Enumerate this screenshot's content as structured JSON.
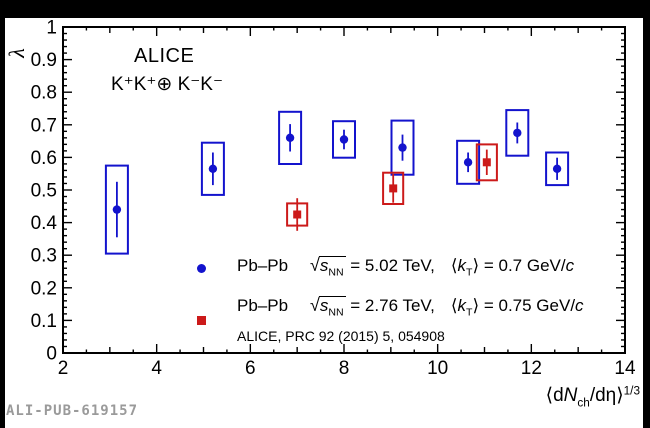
{
  "page": {
    "background": "#000000",
    "canvas_background": "#ffffff",
    "watermark": "ALI-PUB-619157"
  },
  "plot": {
    "experiment_label": "ALICE",
    "pair_label": "K⁺K⁺⊕ K⁻K⁻",
    "ylabel": "λ",
    "xlabel": {
      "pre": "⟨d",
      "var": "N",
      "sub": "ch",
      "mid": "/dη⟩",
      "sup": "1/3"
    },
    "axis_color": "#000000"
  },
  "legend": {
    "entries": [
      {
        "marker": "circle",
        "color": "#1313cd",
        "system": "Pb–Pb",
        "sqrt": "√",
        "s_var": "s",
        "s_sub": "NN",
        "energy": " = 5.02 TeV,",
        "kt_open": "⟨",
        "kt_var": "k",
        "kt_sub": "T",
        "kt_close": "⟩ = 0.7 GeV/",
        "c_var": "c"
      },
      {
        "marker": "square",
        "color": "#cc1a1a",
        "system": "Pb–Pb",
        "sqrt": "√",
        "s_var": "s",
        "s_sub": "NN",
        "energy": " = 2.76 TeV,",
        "kt_open": "⟨",
        "kt_var": "k",
        "kt_sub": "T",
        "kt_close": "⟩ = 0.75 GeV/",
        "c_var": "c"
      }
    ],
    "reference": "ALICE, PRC 92 (2015) 5, 054908"
  },
  "chart_data": {
    "type": "scatter",
    "title": "",
    "xlabel": "⟨dN_ch/dη⟩^(1/3)",
    "ylabel": "λ",
    "xlim": [
      2,
      14
    ],
    "ylim": [
      0,
      1
    ],
    "grid": false,
    "legend_position": "inside bottom",
    "x_tick_labels": [
      "2",
      "4",
      "6",
      "8",
      "10",
      "12",
      "14"
    ],
    "y_tick_labels": [
      "0",
      "0.1",
      "0.2",
      "0.3",
      "0.4",
      "0.5",
      "0.6",
      "0.7",
      "0.8",
      "0.9",
      "1"
    ],
    "x_minor_step": 0.5,
    "y_minor_step": 0.02,
    "series": [
      {
        "name": "Pb–Pb √sNN = 5.02 TeV, ⟨kT⟩ = 0.7 GeV/c",
        "marker": "circle",
        "color": "#1313cd",
        "box_halfwidth_x": 0.235,
        "points": [
          {
            "x": 3.15,
            "y": 0.44,
            "stat": 0.085,
            "syst": 0.135
          },
          {
            "x": 5.2,
            "y": 0.565,
            "stat": 0.05,
            "syst": 0.08
          },
          {
            "x": 6.85,
            "y": 0.66,
            "stat": 0.042,
            "syst": 0.08
          },
          {
            "x": 8.0,
            "y": 0.655,
            "stat": 0.03,
            "syst": 0.056
          },
          {
            "x": 9.25,
            "y": 0.63,
            "stat": 0.04,
            "syst": 0.083
          },
          {
            "x": 10.65,
            "y": 0.585,
            "stat": 0.03,
            "syst": 0.066
          },
          {
            "x": 11.7,
            "y": 0.675,
            "stat": 0.032,
            "syst": 0.07
          },
          {
            "x": 12.55,
            "y": 0.565,
            "stat": 0.034,
            "syst": 0.05
          }
        ]
      },
      {
        "name": "Pb–Pb √sNN = 2.76 TeV, ⟨kT⟩ = 0.75 GeV/c",
        "marker": "square",
        "color": "#cc1a1a",
        "box_halfwidth_x": 0.215,
        "points": [
          {
            "x": 7.0,
            "y": 0.425,
            "stat": 0.05,
            "syst": 0.034
          },
          {
            "x": 9.05,
            "y": 0.505,
            "stat": 0.044,
            "syst": 0.048
          },
          {
            "x": 11.05,
            "y": 0.585,
            "stat": 0.039,
            "syst": 0.055
          }
        ]
      }
    ]
  }
}
